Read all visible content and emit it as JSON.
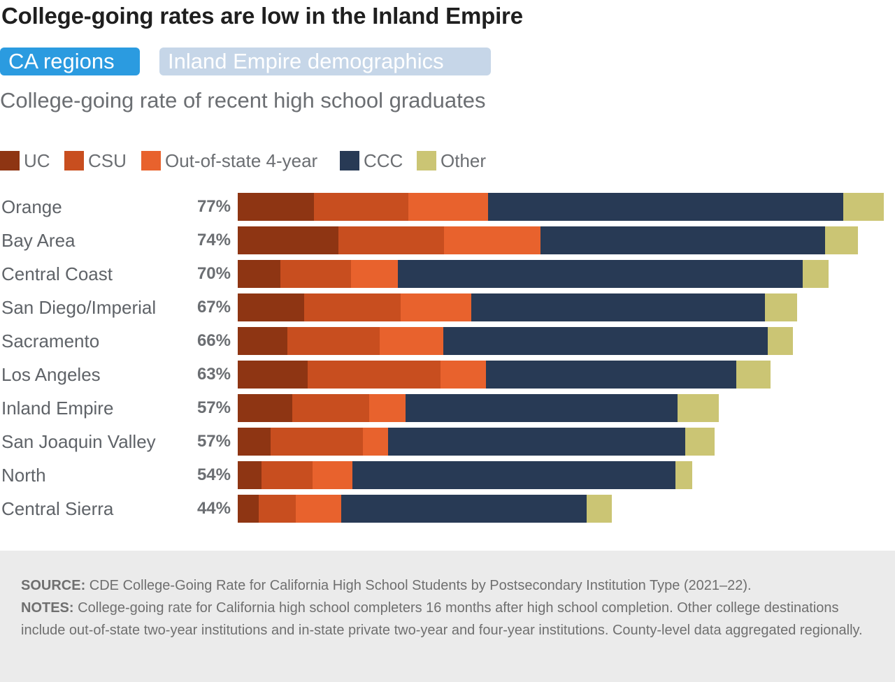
{
  "header": {
    "title": "College-going rates are low in the Inland Empire",
    "tabs": [
      {
        "label": "CA regions",
        "active": true
      },
      {
        "label": "Inland Empire demographics",
        "active": false
      }
    ],
    "subtitle": "College-going rate of recent high school graduates"
  },
  "chart_data": {
    "type": "bar",
    "orientation": "horizontal",
    "stacked": true,
    "title": "College-going rate of recent high school graduates",
    "categories": [
      "Orange",
      "Bay Area",
      "Central Coast",
      "San Diego/Imperial",
      "Sacramento",
      "Los Angeles",
      "Inland Empire",
      "San Joaquin Valley",
      "North",
      "Central Sierra"
    ],
    "totals": [
      "77%",
      "74%",
      "70%",
      "67%",
      "66%",
      "63%",
      "57%",
      "57%",
      "54%",
      "44%"
    ],
    "series": [
      {
        "name": "UC",
        "color": "#8e3513",
        "values": [
          9.1,
          12.0,
          5.1,
          7.9,
          5.9,
          8.3,
          6.5,
          3.9,
          2.8,
          2.5
        ]
      },
      {
        "name": "CSU",
        "color": "#c84e1f",
        "values": [
          11.2,
          12.6,
          8.4,
          11.5,
          11.0,
          15.9,
          9.2,
          11.0,
          6.1,
          4.4
        ]
      },
      {
        "name": "Out-of-state 4-year",
        "color": "#e8622d",
        "values": [
          9.5,
          11.5,
          5.6,
          8.4,
          7.6,
          5.4,
          4.3,
          3.0,
          4.8,
          5.4
        ]
      },
      {
        "name": "CCC",
        "color": "#283a55",
        "values": [
          42.4,
          33.9,
          48.2,
          35.0,
          38.7,
          29.8,
          32.4,
          35.4,
          38.5,
          29.3
        ]
      },
      {
        "name": "Other",
        "color": "#cbc574",
        "values": [
          4.8,
          3.9,
          3.1,
          3.9,
          3.0,
          4.1,
          4.9,
          3.5,
          2.0,
          3.0
        ]
      }
    ],
    "legend_position": "top-left",
    "grid": false
  },
  "footer": {
    "source_label": "SOURCE:",
    "source_text": "CDE College-Going Rate for California High School Students by Postsecondary Institution Type (2021–22).",
    "notes_label": "NOTES:",
    "notes_text": "College-going rate for California high school completers 16 months after high school completion. Other college destinations include out-of-state two-year institutions and in-state private two-year and four-year institutions. County-level data aggregated regionally."
  }
}
